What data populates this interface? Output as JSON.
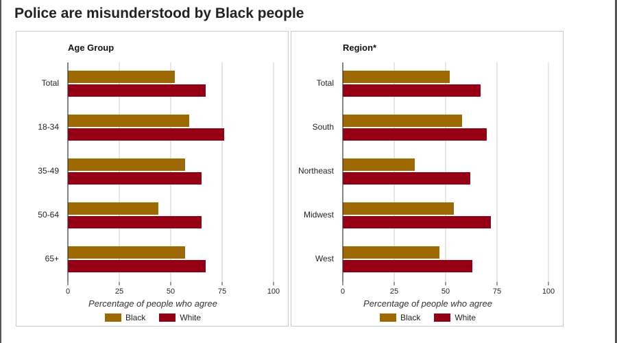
{
  "title": "Police are misunderstood by Black people",
  "colors": {
    "black_series": "#9c6a00",
    "white_series": "#960014",
    "grid": "#cccccc",
    "axis": "#333333"
  },
  "chart_data": [
    {
      "type": "bar",
      "orientation": "horizontal",
      "title": "Age Group",
      "categories": [
        "Total",
        "18-34",
        "35-49",
        "50-64",
        "65+"
      ],
      "series": [
        {
          "name": "Black",
          "values": [
            52,
            59,
            57,
            44,
            57
          ]
        },
        {
          "name": "White",
          "values": [
            67,
            76,
            65,
            65,
            67
          ]
        }
      ],
      "xlabel": "Percentage of people who agree",
      "xlim": [
        0,
        100
      ],
      "xticks": [
        0,
        25,
        50,
        75,
        100
      ],
      "grid": "vertical",
      "legend": "bottom"
    },
    {
      "type": "bar",
      "orientation": "horizontal",
      "title": "Region*",
      "categories": [
        "Total",
        "South",
        "Northeast",
        "Midwest",
        "West"
      ],
      "series": [
        {
          "name": "Black",
          "values": [
            52,
            58,
            35,
            54,
            47
          ]
        },
        {
          "name": "White",
          "values": [
            67,
            70,
            62,
            72,
            63
          ]
        }
      ],
      "xlabel": "Percentage of people who agree",
      "xlim": [
        0,
        100
      ],
      "xticks": [
        0,
        25,
        50,
        75,
        100
      ],
      "grid": "vertical",
      "legend": "bottom"
    }
  ]
}
